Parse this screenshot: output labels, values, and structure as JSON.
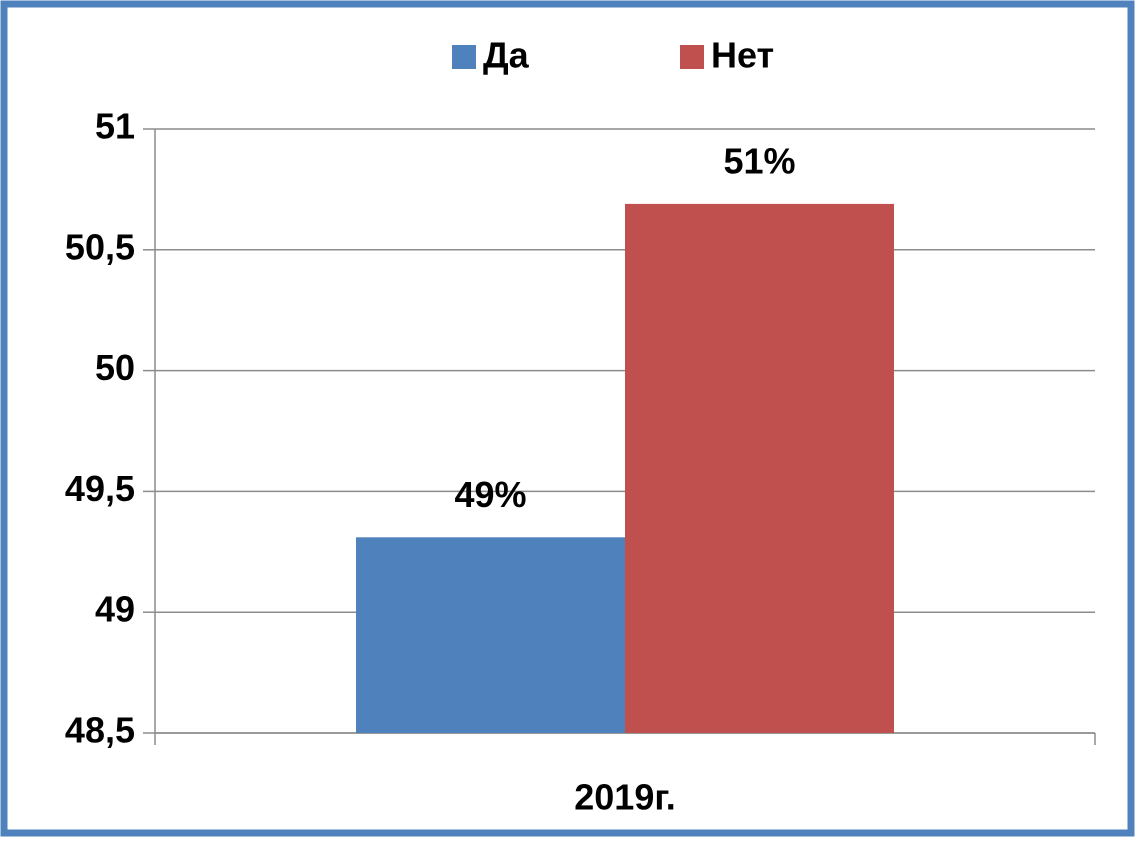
{
  "chart_data": {
    "type": "bar",
    "categories": [
      "2019г."
    ],
    "series": [
      {
        "name": "Да",
        "color": "#4f81bd",
        "values": [
          49.31
        ],
        "value_labels": [
          "49%"
        ]
      },
      {
        "name": "Нет",
        "color": "#c0504d",
        "values": [
          50.69
        ],
        "value_labels": [
          "51%"
        ]
      }
    ],
    "ylim": [
      48.5,
      51
    ],
    "yticks": [
      {
        "value": 48.5,
        "label": "48,5"
      },
      49,
      {
        "value": 49.5,
        "label": "49,5"
      },
      50,
      {
        "value": 50.5,
        "label": "50,5"
      },
      51
    ],
    "grid": true,
    "legend": "top"
  }
}
